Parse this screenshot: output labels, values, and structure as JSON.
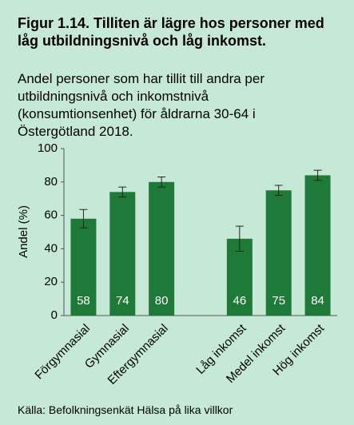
{
  "chart_data": {
    "type": "bar",
    "title": "Figur 1.14. Tilliten är lägre hos personer med låg utbildningsnivå och låg inkomst.",
    "subtitle": "Andel personer som har tillit till andra per utbildningsnivå och inkomstnivå (konsumtionsenhet) för åldrarna 30-64 i Östergötland 2018.",
    "y_label": "Andel (%)",
    "source": "Källa: Befolkningsenkät Hälsa på lika villkor",
    "categories": [
      "Förgymnasial",
      "Gymnasial",
      "Eftergymnasial",
      null,
      "Låg inkomst",
      "Medel inkomst",
      "Hög inkomst"
    ],
    "values": [
      58,
      74,
      80,
      null,
      46,
      75,
      84
    ],
    "errors": [
      5.5,
      3,
      3,
      null,
      7.5,
      3,
      3
    ],
    "color": "#1f7a3a",
    "ylim": [
      0,
      100
    ],
    "yticks": [
      0,
      20,
      40,
      60,
      80,
      100
    ],
    "grid": false
  }
}
